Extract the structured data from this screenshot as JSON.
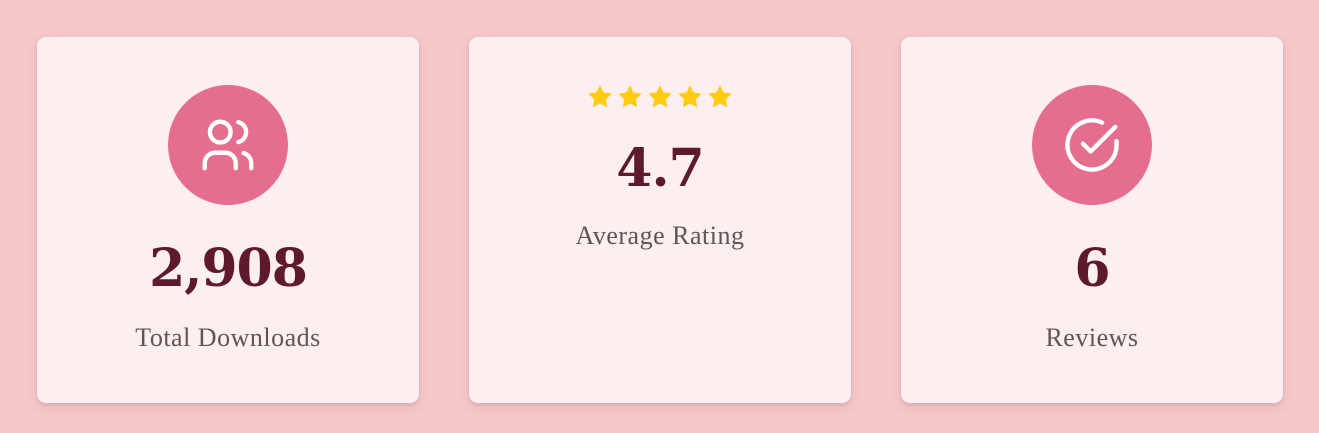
{
  "stats": [
    {
      "id": "downloads",
      "icon": "users-icon",
      "value": "2,908",
      "label": "Total Downloads"
    },
    {
      "id": "rating",
      "icon": "star-icon",
      "stars": 5,
      "value": "4.7",
      "label": "Average Rating"
    },
    {
      "id": "reviews",
      "icon": "check-circle-icon",
      "value": "6",
      "label": "Reviews"
    }
  ],
  "colors": {
    "page_background": "#f5c8cc",
    "card_background": "#fdeeef",
    "accent": "#e56d8e",
    "value_text": "#5c1a2c",
    "label_text": "#5f5558",
    "star": "#ffcc12"
  }
}
